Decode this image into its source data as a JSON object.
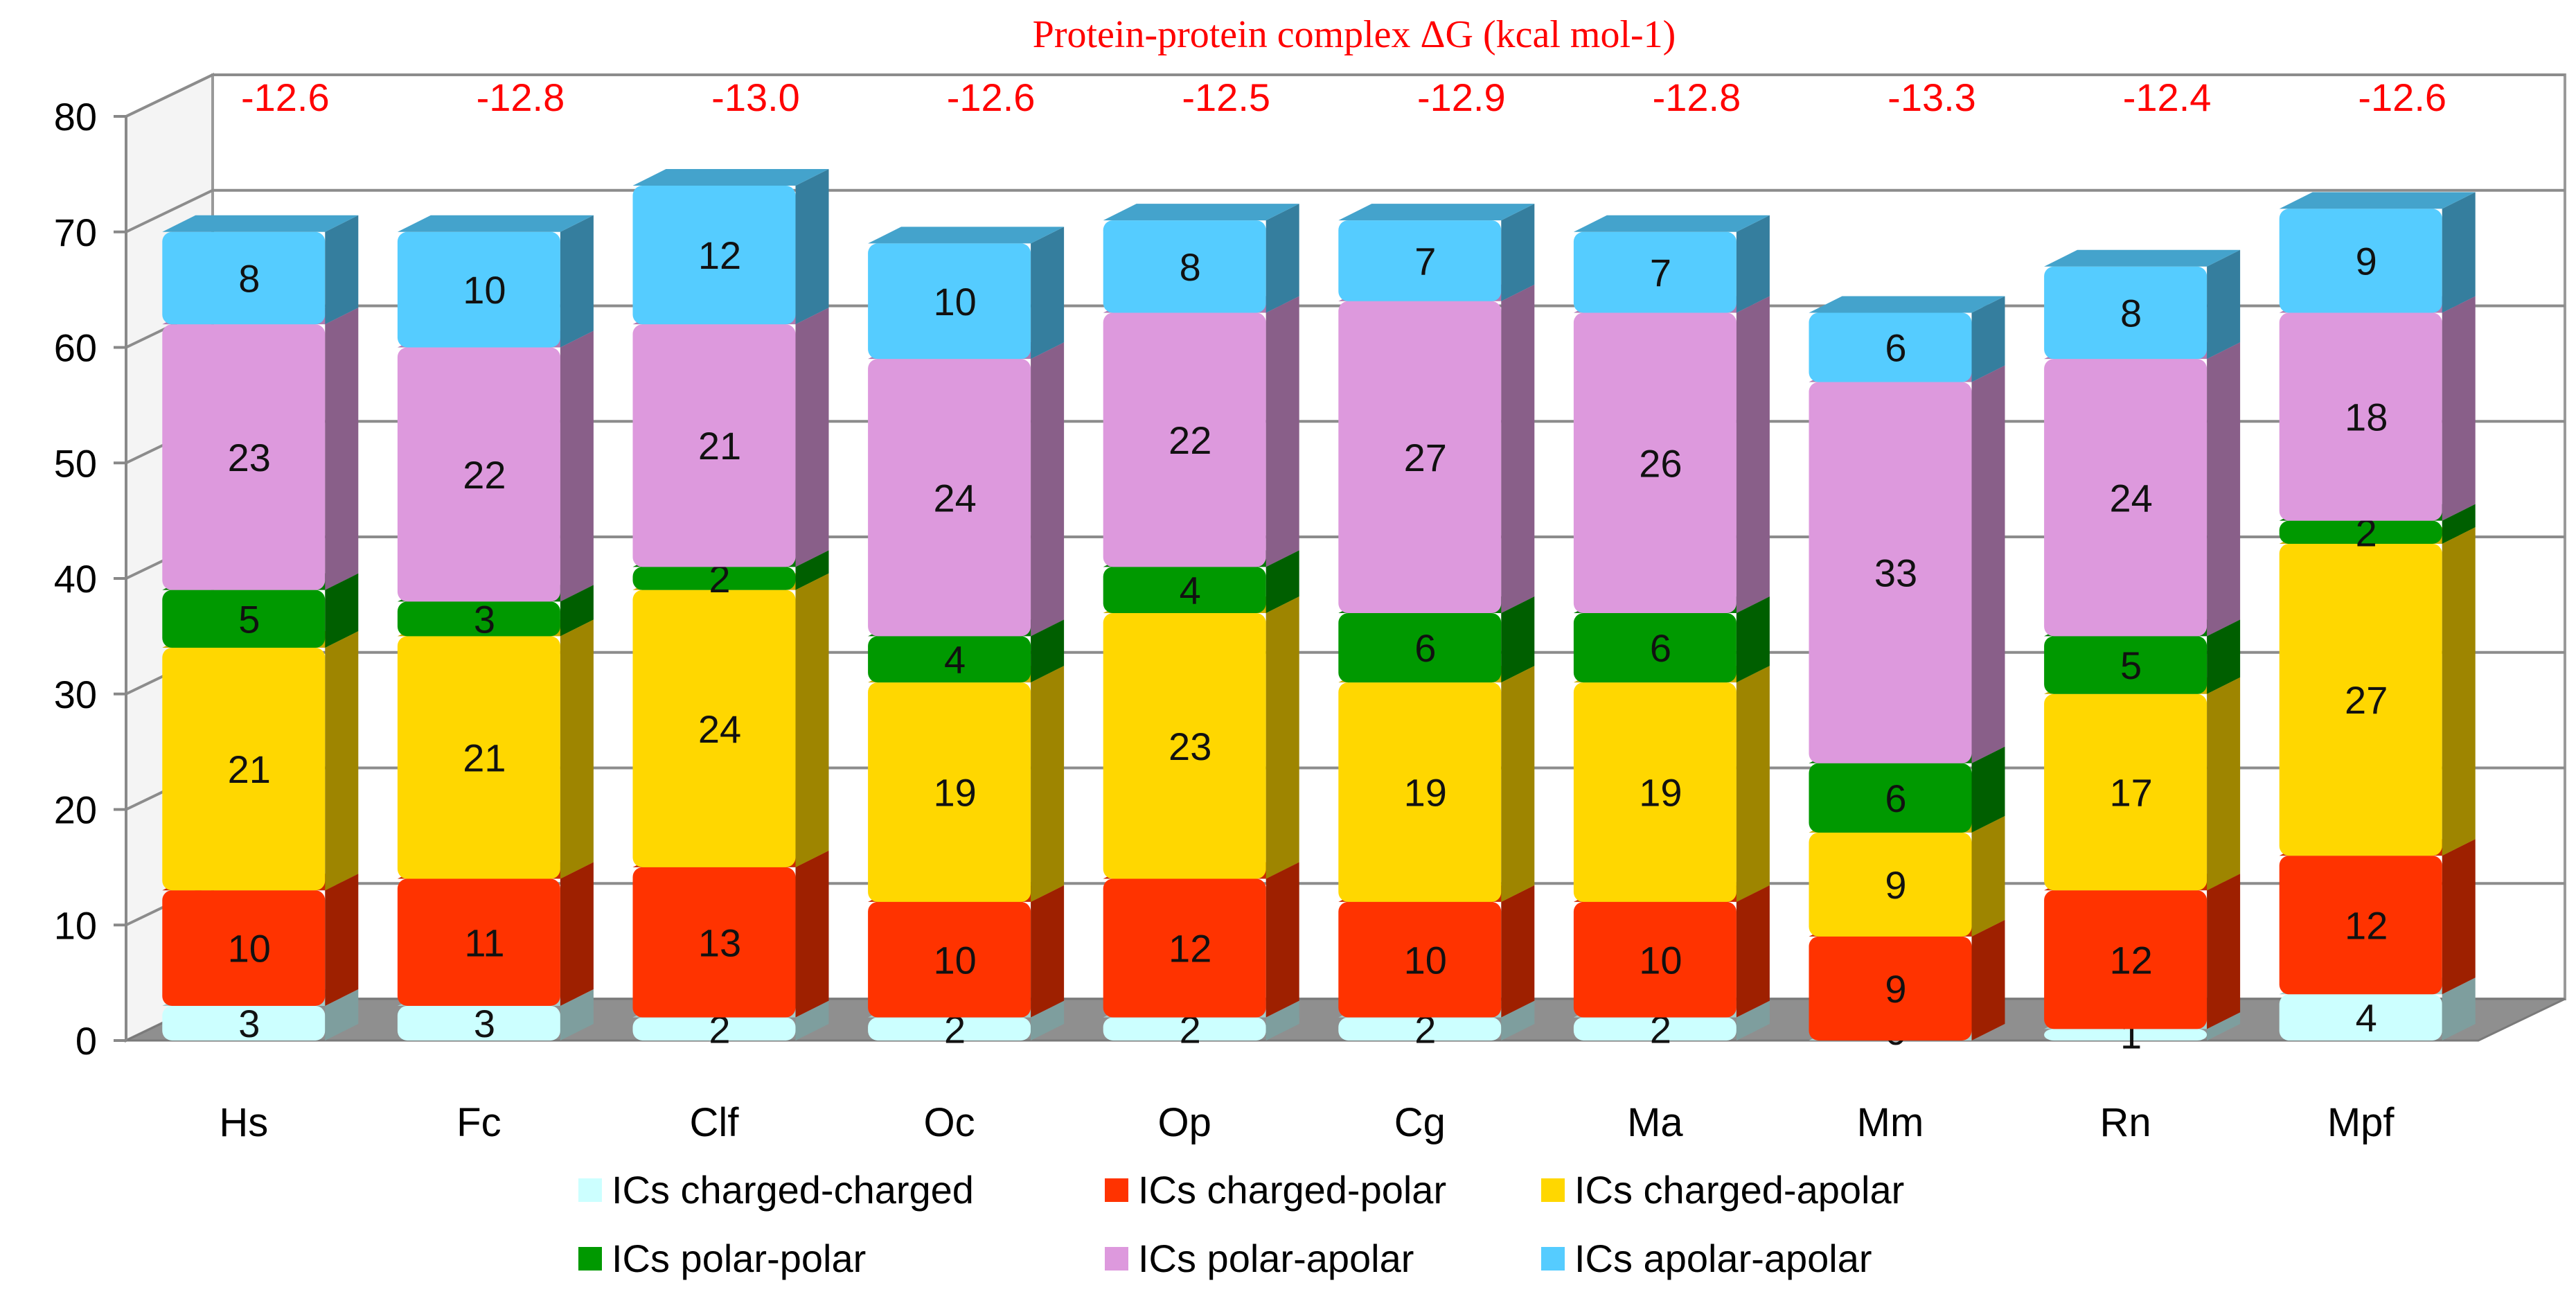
{
  "chart_data": {
    "type": "bar",
    "stacked": true,
    "three_d": true,
    "title": "Protein-protein complex ΔG (kcal mol-1)",
    "xlabel": "",
    "ylabel": "",
    "ylim": [
      0,
      80
    ],
    "yticks": [
      "0",
      "10",
      "20",
      "30",
      "40",
      "50",
      "60",
      "70",
      "80"
    ],
    "grid": true,
    "legend_position": "bottom",
    "categories": [
      "Hs",
      "Fc",
      "Clf",
      "Oc",
      "Op",
      "Cg",
      "Ma",
      "Mm",
      "Rn",
      "Mpf"
    ],
    "delta_g": [
      "-12.6",
      "-12.8",
      "-13.0",
      "-12.6",
      "-12.5",
      "-12.9",
      "-12.8",
      "-13.3",
      "-12.4",
      "-12.6"
    ],
    "series": [
      {
        "name": "ICs charged-charged",
        "color": "#ccffff",
        "values": [
          3,
          3,
          2,
          2,
          2,
          2,
          2,
          0,
          1,
          4
        ]
      },
      {
        "name": "ICs charged-polar",
        "color": "#ff3300",
        "values": [
          10,
          11,
          13,
          10,
          12,
          10,
          10,
          9,
          12,
          12
        ]
      },
      {
        "name": "ICs charged-apolar",
        "color": "#ffd700",
        "values": [
          21,
          21,
          24,
          19,
          23,
          19,
          19,
          9,
          17,
          27
        ]
      },
      {
        "name": "ICs polar-polar",
        "color": "#009900",
        "values": [
          5,
          3,
          2,
          4,
          4,
          6,
          6,
          6,
          5,
          2
        ]
      },
      {
        "name": "ICs polar-apolar",
        "color": "#dd99dd",
        "values": [
          23,
          22,
          21,
          24,
          22,
          27,
          26,
          33,
          24,
          18
        ]
      },
      {
        "name": "ICs apolar-apolar",
        "color": "#55ccff",
        "values": [
          8,
          10,
          12,
          10,
          8,
          7,
          7,
          6,
          8,
          9
        ]
      }
    ]
  }
}
